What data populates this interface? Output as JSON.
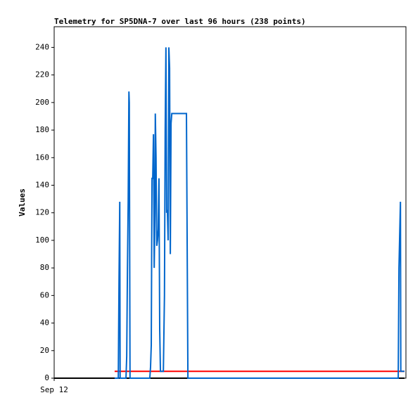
{
  "chart_data": {
    "type": "line",
    "title": "Telemetry for SP5DNA-7 over last 96 hours (238 points)",
    "y_label": "Values",
    "xlim": [
      0,
      96
    ],
    "xticks": [
      {
        "value": 0,
        "label": "Sep 12"
      }
    ],
    "ylim": [
      0,
      255
    ],
    "yticks": [
      0,
      20,
      40,
      60,
      80,
      100,
      120,
      140,
      160,
      180,
      200,
      220,
      240
    ],
    "series": [
      {
        "color": "#000000",
        "x": [
          0,
          95.6
        ],
        "values": [
          0,
          0
        ]
      },
      {
        "color": "#ff0000",
        "x": [
          16.5,
          95.6
        ],
        "values": [
          5,
          5
        ]
      },
      {
        "color": "#0066cc",
        "x": [
          16.5,
          17.5,
          17.7,
          17.9,
          18.0,
          19.6,
          19.8,
          20.0,
          20.2,
          20.4,
          20.5,
          20.7,
          26.1,
          26.3,
          26.5,
          26.7,
          26.9,
          27.1,
          27.3,
          27.5,
          27.6,
          27.8,
          28.0,
          28.2,
          28.4,
          28.6,
          28.8,
          29.0,
          29.8,
          30.1,
          30.3,
          30.5,
          30.7,
          30.9,
          31.1,
          31.3,
          31.5,
          31.7,
          31.9,
          32.1,
          36.1,
          36.3,
          36.5,
          93.9,
          94.1,
          94.5,
          94.6,
          95.6
        ],
        "values": [
          0,
          0,
          72,
          128,
          0,
          0,
          16,
          80,
          128,
          208,
          200,
          0,
          0,
          8,
          24,
          145,
          145,
          177,
          80,
          120,
          192,
          160,
          96,
          100,
          108,
          145,
          36,
          5,
          5,
          60,
          180,
          240,
          120,
          122,
          100,
          240,
          225,
          90,
          185,
          192,
          192,
          96,
          0,
          0,
          80,
          128,
          5,
          5
        ]
      }
    ]
  }
}
